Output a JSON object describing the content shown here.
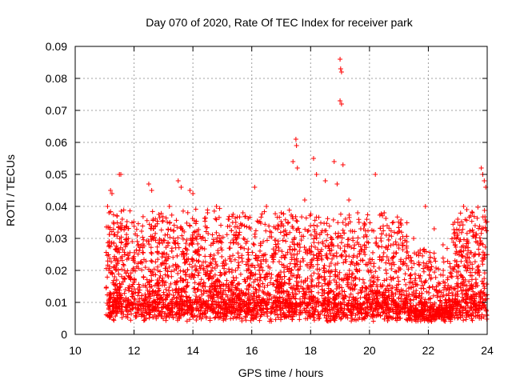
{
  "chart_data": {
    "type": "scatter",
    "title": "Day 070 of 2020, Rate Of TEC Index for receiver park",
    "xlabel": "GPS time / hours",
    "ylabel": "ROTI / TECUs",
    "xlim": [
      10,
      24
    ],
    "ylim": [
      0,
      0.09
    ],
    "x_ticks": [
      10,
      12,
      14,
      16,
      18,
      20,
      22,
      24
    ],
    "x_tick_labels": [
      "10",
      "12",
      "14",
      "16",
      "18",
      "20",
      "22",
      "24"
    ],
    "y_ticks": [
      0,
      0.01,
      0.02,
      0.03,
      0.04,
      0.05,
      0.06,
      0.07,
      0.08,
      0.09
    ],
    "y_tick_labels": [
      "0",
      "0.01",
      "0.02",
      "0.03",
      "0.04",
      "0.05",
      "0.06",
      "0.07",
      "0.08",
      "0.09"
    ],
    "grid": true,
    "marker": "plus",
    "color": "#ff0000",
    "series": [
      {
        "points": [
          [
            11.1,
            0.04
          ],
          [
            11.15,
            0.038
          ],
          [
            11.2,
            0.045
          ],
          [
            11.25,
            0.044
          ],
          [
            11.3,
            0.035
          ],
          [
            11.5,
            0.05
          ],
          [
            11.55,
            0.05
          ],
          [
            11.6,
            0.036
          ],
          [
            12.5,
            0.047
          ],
          [
            12.6,
            0.045
          ],
          [
            13.2,
            0.04
          ],
          [
            13.5,
            0.048
          ],
          [
            13.6,
            0.046
          ],
          [
            13.9,
            0.045
          ],
          [
            14.0,
            0.044
          ],
          [
            14.5,
            0.038
          ],
          [
            14.8,
            0.04
          ],
          [
            15.2,
            0.036
          ],
          [
            15.7,
            0.038
          ],
          [
            16.1,
            0.046
          ],
          [
            16.5,
            0.04
          ],
          [
            17.0,
            0.038
          ],
          [
            17.4,
            0.054
          ],
          [
            17.5,
            0.061
          ],
          [
            17.52,
            0.059
          ],
          [
            17.55,
            0.052
          ],
          [
            17.8,
            0.042
          ],
          [
            18.1,
            0.055
          ],
          [
            18.2,
            0.05
          ],
          [
            18.5,
            0.048
          ],
          [
            18.8,
            0.054
          ],
          [
            18.9,
            0.047
          ],
          [
            19.0,
            0.086
          ],
          [
            19.02,
            0.083
          ],
          [
            19.05,
            0.082
          ],
          [
            19.0,
            0.073
          ],
          [
            19.05,
            0.072
          ],
          [
            19.1,
            0.053
          ],
          [
            19.3,
            0.042
          ],
          [
            19.6,
            0.038
          ],
          [
            20.2,
            0.05
          ],
          [
            20.5,
            0.038
          ],
          [
            20.6,
            0.034
          ],
          [
            21.0,
            0.032
          ],
          [
            21.5,
            0.03
          ],
          [
            21.9,
            0.04
          ],
          [
            22.2,
            0.033
          ],
          [
            22.5,
            0.028
          ],
          [
            23.0,
            0.036
          ],
          [
            23.2,
            0.04
          ],
          [
            23.5,
            0.038
          ],
          [
            23.8,
            0.052
          ],
          [
            23.85,
            0.05
          ],
          [
            23.9,
            0.048
          ],
          [
            23.95,
            0.046
          ]
        ]
      }
    ]
  }
}
